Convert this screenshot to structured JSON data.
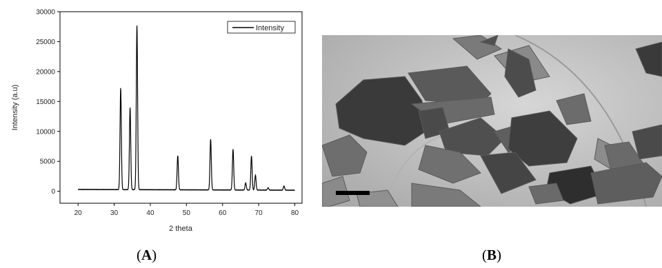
{
  "chart_data": {
    "type": "line",
    "ylabel": "Intensity (a.u)",
    "xlabel": "2 theta",
    "xlim": [
      15,
      82
    ],
    "ylim": [
      -2000,
      30000
    ],
    "xticks": [
      20,
      30,
      40,
      50,
      60,
      70,
      80
    ],
    "yticks": [
      0,
      5000,
      10000,
      15000,
      20000,
      25000,
      30000
    ],
    "legend": "top-right",
    "series": [
      {
        "name": "Intensity",
        "color": "#000000",
        "baseline": 300,
        "peaks": [
          {
            "x": 31.8,
            "y": 17300
          },
          {
            "x": 34.4,
            "y": 14000
          },
          {
            "x": 36.3,
            "y": 27700
          },
          {
            "x": 47.6,
            "y": 6000
          },
          {
            "x": 56.7,
            "y": 8800
          },
          {
            "x": 62.9,
            "y": 7100
          },
          {
            "x": 66.4,
            "y": 1500
          },
          {
            "x": 68.0,
            "y": 6000
          },
          {
            "x": 69.1,
            "y": 2800
          },
          {
            "x": 72.6,
            "y": 700
          },
          {
            "x": 77.0,
            "y": 1000
          }
        ]
      }
    ]
  },
  "panels": {
    "a_label": "A",
    "b_label": "B"
  }
}
